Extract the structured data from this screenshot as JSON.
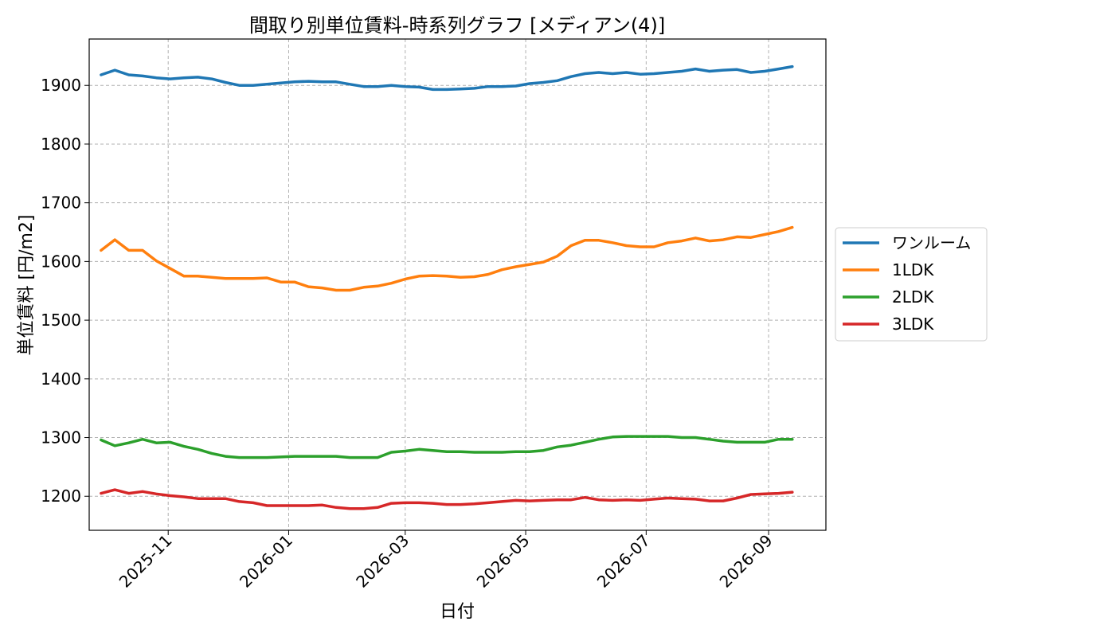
{
  "chart_data": {
    "type": "line",
    "title": "間取り別単位賃料-時系列グラフ [メディアン(4)]",
    "xlabel": "日付",
    "ylabel": "単位賃料 [円/m2]",
    "xlim": [
      "2025-09-22",
      "2026-09-30"
    ],
    "ylim": [
      1142,
      1979
    ],
    "yticks": [
      1200,
      1300,
      1400,
      1500,
      1600,
      1700,
      1800,
      1900
    ],
    "xticks": [
      "2025-11",
      "2026-01",
      "2026-03",
      "2026-05",
      "2026-07",
      "2026-09"
    ],
    "grid": true,
    "legend_position": "right",
    "x": [
      "2025-09-28",
      "2025-10-05",
      "2025-10-12",
      "2025-10-19",
      "2025-10-26",
      "2025-11-02",
      "2025-11-09",
      "2025-11-16",
      "2025-11-23",
      "2025-11-30",
      "2025-12-07",
      "2025-12-14",
      "2025-12-21",
      "2025-12-28",
      "2026-01-04",
      "2026-01-11",
      "2026-01-18",
      "2026-01-25",
      "2026-02-01",
      "2026-02-08",
      "2026-02-15",
      "2026-02-22",
      "2026-03-01",
      "2026-03-08",
      "2026-03-15",
      "2026-03-22",
      "2026-03-29",
      "2026-04-05",
      "2026-04-12",
      "2026-04-19",
      "2026-04-26",
      "2026-05-03",
      "2026-05-10",
      "2026-05-17",
      "2026-05-24",
      "2026-05-31",
      "2026-06-07",
      "2026-06-14",
      "2026-06-21",
      "2026-06-28",
      "2026-07-05",
      "2026-07-12",
      "2026-07-19",
      "2026-07-26",
      "2026-08-02",
      "2026-08-09",
      "2026-08-16",
      "2026-08-23",
      "2026-08-30",
      "2026-09-06",
      "2026-09-13"
    ],
    "series": [
      {
        "name": "ワンルーム",
        "color": "#1f77b4",
        "values": [
          1918,
          1926,
          1918,
          1916,
          1913,
          1911,
          1913,
          1914,
          1911,
          1905,
          1900,
          1900,
          1902,
          1904,
          1906,
          1907,
          1906,
          1906,
          1902,
          1898,
          1898,
          1900,
          1898,
          1897,
          1893,
          1893,
          1894,
          1895,
          1898,
          1898,
          1899,
          1903,
          1905,
          1908,
          1915,
          1920,
          1922,
          1920,
          1922,
          1919,
          1920,
          1922,
          1924,
          1928,
          1924,
          1926,
          1927,
          1922,
          1924,
          1928,
          1932
        ]
      },
      {
        "name": "1LDK",
        "color": "#ff7f0e",
        "values": [
          1619,
          1637,
          1619,
          1619,
          1601,
          1588,
          1575,
          1575,
          1573,
          1571,
          1571,
          1571,
          1572,
          1565,
          1565,
          1557,
          1555,
          1551,
          1551,
          1556,
          1558,
          1563,
          1570,
          1575,
          1576,
          1575,
          1573,
          1574,
          1578,
          1586,
          1591,
          1595,
          1599,
          1609,
          1627,
          1636,
          1636,
          1632,
          1627,
          1625,
          1625,
          1632,
          1635,
          1640,
          1635,
          1637,
          1642,
          1641,
          1646,
          1651,
          1658
        ]
      },
      {
        "name": "2LDK",
        "color": "#2ca02c",
        "values": [
          1296,
          1286,
          1291,
          1297,
          1291,
          1292,
          1285,
          1280,
          1273,
          1268,
          1266,
          1266,
          1266,
          1267,
          1268,
          1268,
          1268,
          1268,
          1266,
          1266,
          1266,
          1275,
          1277,
          1280,
          1278,
          1276,
          1276,
          1275,
          1275,
          1275,
          1276,
          1276,
          1278,
          1284,
          1287,
          1292,
          1297,
          1301,
          1302,
          1302,
          1302,
          1302,
          1300,
          1300,
          1297,
          1294,
          1292,
          1292,
          1292,
          1297,
          1297
        ]
      },
      {
        "name": "3LDK",
        "color": "#d62728",
        "values": [
          1205,
          1211,
          1205,
          1208,
          1204,
          1201,
          1199,
          1196,
          1196,
          1196,
          1191,
          1189,
          1184,
          1184,
          1184,
          1184,
          1185,
          1181,
          1179,
          1179,
          1181,
          1188,
          1189,
          1189,
          1188,
          1186,
          1186,
          1187,
          1189,
          1191,
          1193,
          1192,
          1193,
          1194,
          1194,
          1198,
          1194,
          1193,
          1194,
          1193,
          1195,
          1197,
          1196,
          1195,
          1192,
          1192,
          1197,
          1203,
          1204,
          1205,
          1207
        ]
      }
    ]
  }
}
